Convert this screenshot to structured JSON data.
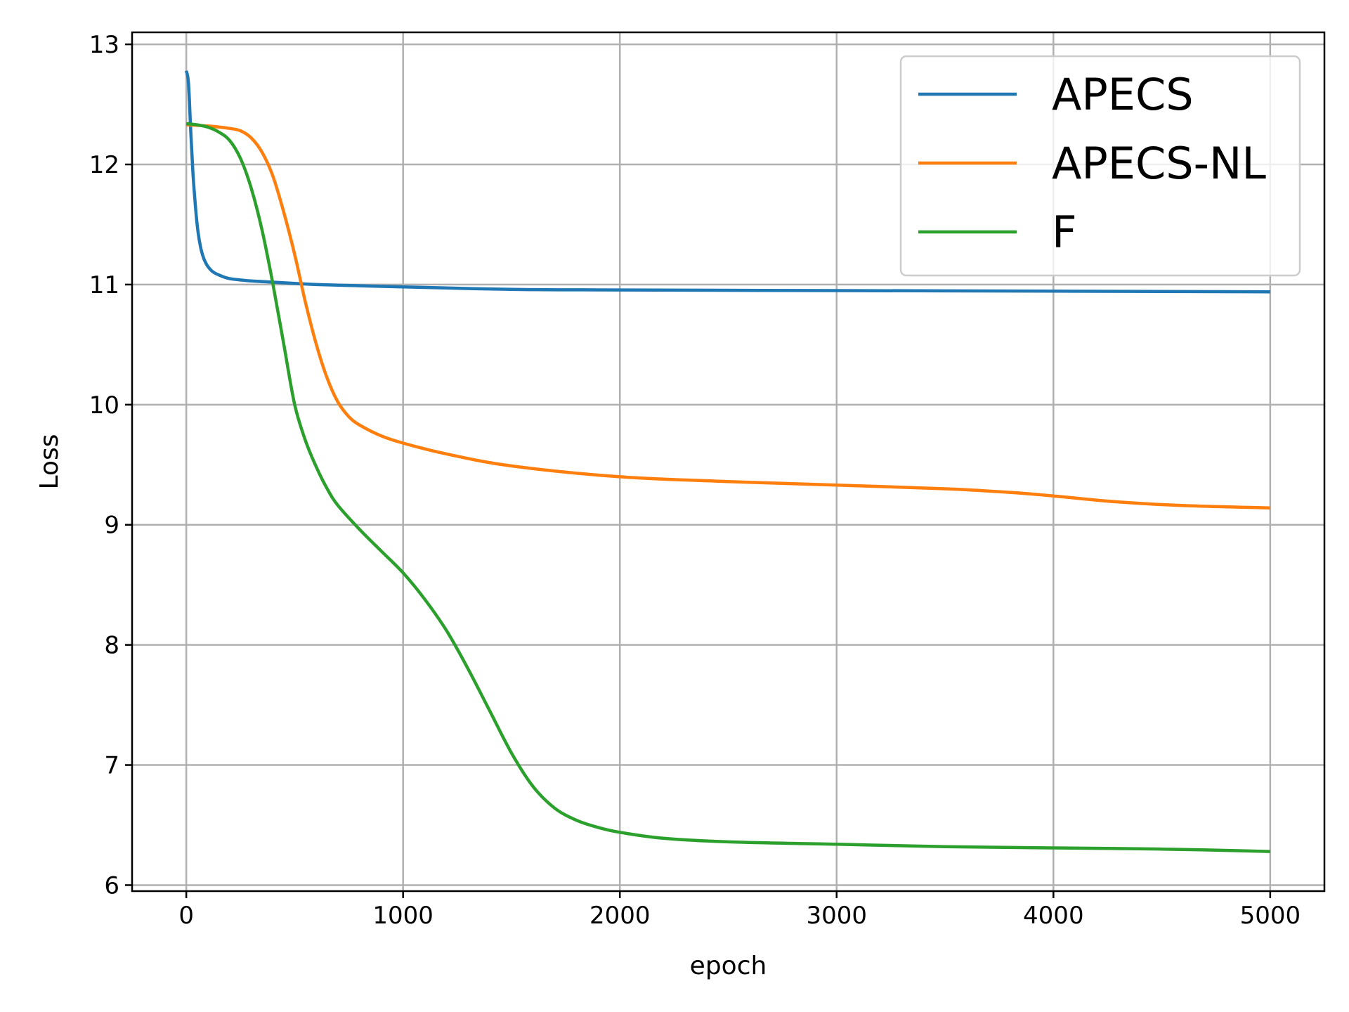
{
  "chart_data": {
    "type": "line",
    "title": "",
    "xlabel": "epoch",
    "ylabel": "Loss",
    "xlim": [
      -250,
      5250
    ],
    "ylim": [
      5.95,
      13.1
    ],
    "xticks": [
      0,
      1000,
      2000,
      3000,
      4000,
      5000
    ],
    "yticks": [
      6,
      7,
      8,
      9,
      10,
      11,
      12,
      13
    ],
    "grid": true,
    "legend": "top-right",
    "series": [
      {
        "name": "APECS",
        "color": "#1f77b4",
        "x": [
          0,
          10,
          20,
          30,
          40,
          50,
          60,
          70,
          80,
          90,
          100,
          120,
          150,
          200,
          300,
          400,
          500,
          600,
          800,
          1000,
          1500,
          2000,
          3000,
          4000,
          5000
        ],
        "y": [
          12.78,
          12.68,
          12.3,
          11.95,
          11.7,
          11.5,
          11.37,
          11.28,
          11.22,
          11.18,
          11.15,
          11.11,
          11.08,
          11.05,
          11.03,
          11.02,
          11.01,
          11.0,
          10.99,
          10.98,
          10.96,
          10.955,
          10.95,
          10.945,
          10.94
        ]
      },
      {
        "name": "APECS-NL",
        "color": "#ff7f0e",
        "x": [
          0,
          100,
          200,
          250,
          300,
          350,
          400,
          450,
          500,
          550,
          600,
          650,
          700,
          750,
          800,
          900,
          1000,
          1200,
          1500,
          2000,
          2500,
          3000,
          3500,
          3800,
          4000,
          4300,
          4600,
          5000
        ],
        "y": [
          12.33,
          12.32,
          12.3,
          12.28,
          12.22,
          12.1,
          11.9,
          11.6,
          11.25,
          10.85,
          10.5,
          10.22,
          10.02,
          9.9,
          9.83,
          9.74,
          9.68,
          9.59,
          9.49,
          9.4,
          9.36,
          9.33,
          9.3,
          9.27,
          9.24,
          9.19,
          9.16,
          9.14
        ]
      },
      {
        "name": "F",
        "color": "#2ca02c",
        "x": [
          0,
          50,
          100,
          150,
          200,
          250,
          300,
          350,
          400,
          450,
          500,
          550,
          600,
          650,
          700,
          800,
          900,
          1000,
          1100,
          1200,
          1300,
          1400,
          1500,
          1600,
          1700,
          1800,
          1900,
          2000,
          2200,
          2500,
          3000,
          3500,
          4000,
          4500,
          5000
        ],
        "y": [
          12.34,
          12.33,
          12.31,
          12.27,
          12.2,
          12.05,
          11.8,
          11.45,
          11.0,
          10.5,
          10.0,
          9.7,
          9.48,
          9.3,
          9.16,
          8.96,
          8.78,
          8.6,
          8.38,
          8.12,
          7.8,
          7.45,
          7.1,
          6.82,
          6.64,
          6.54,
          6.48,
          6.44,
          6.39,
          6.36,
          6.34,
          6.32,
          6.31,
          6.3,
          6.28
        ]
      }
    ]
  }
}
